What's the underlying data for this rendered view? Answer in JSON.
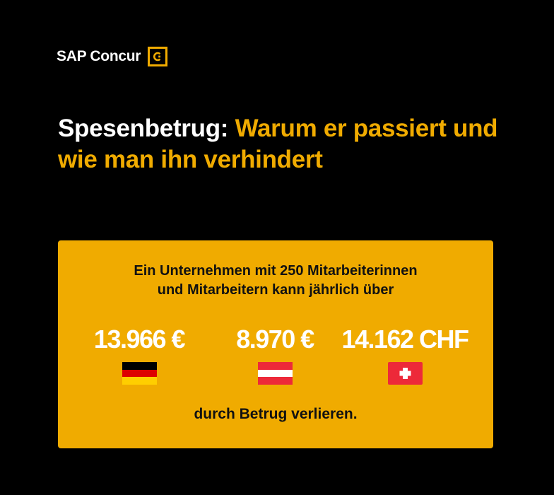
{
  "brand": {
    "name": "SAP Concur",
    "accent_color": "#f0ab00",
    "logo_icon": "concur-c-mark-icon"
  },
  "headline": {
    "part1": "Spesenbetrug:",
    "part2": "Warum er passiert und wie man ihn verhindert"
  },
  "card": {
    "background": "#f0ab00",
    "intro_line1": "Ein Unternehmen mit 250 Mitarbeiterinnen",
    "intro_line2": "und Mitarbeitern kann jährlich über",
    "stats": [
      {
        "amount": "13.966 €",
        "country": "Deutschland",
        "flag_icon": "germany-flag-icon"
      },
      {
        "amount": "8.970 €",
        "country": "Österreich",
        "flag_icon": "austria-flag-icon"
      },
      {
        "amount": "14.162 CHF",
        "country": "Schweiz",
        "flag_icon": "switzerland-flag-icon"
      }
    ],
    "outro": "durch Betrug verlieren."
  }
}
